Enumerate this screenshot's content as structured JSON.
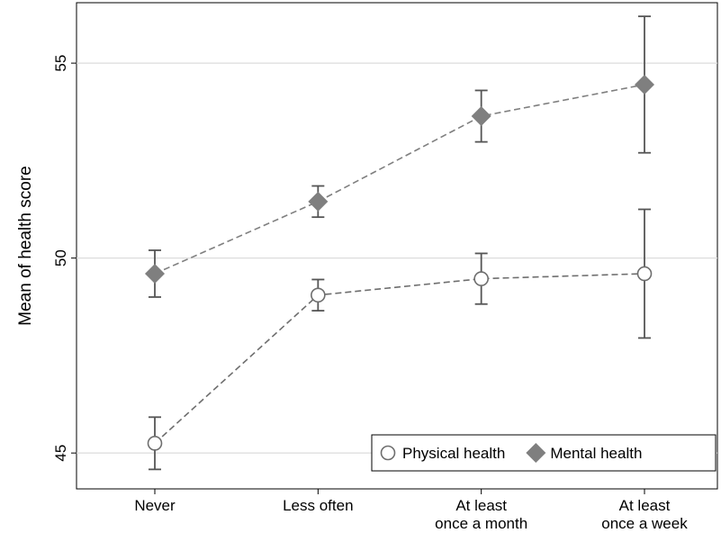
{
  "chart_data": {
    "type": "line",
    "y_label": "Mean of health score",
    "categories": [
      "Never",
      "Less often",
      "At least\nonce a month",
      "At least\nonce a week"
    ],
    "ylim": [
      44.08,
      56.55
    ],
    "yticks": [
      45,
      50,
      55
    ],
    "grid": true,
    "legend": "lower right",
    "series": [
      {
        "name": "Physical health",
        "color": "#6e6e6e",
        "marker": "circle-open",
        "values": [
          45.25,
          49.05,
          49.47,
          49.6
        ],
        "errors": [
          0.67,
          0.4,
          0.65,
          1.65
        ]
      },
      {
        "name": "Mental health",
        "color": "#7f7f7f",
        "marker": "diamond",
        "values": [
          49.6,
          51.45,
          53.64,
          54.45
        ],
        "errors": [
          0.6,
          0.4,
          0.66,
          1.75
        ]
      }
    ]
  }
}
